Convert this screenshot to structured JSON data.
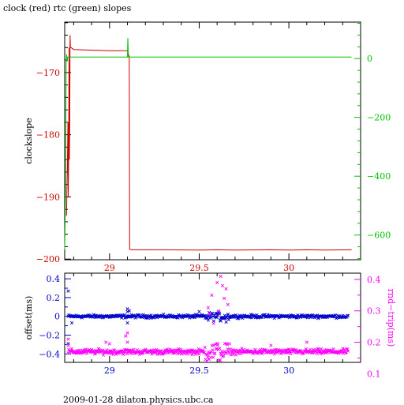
{
  "title": "clock (red) rtc (green) slopes",
  "footer": "2009-01-28 dilaton.physics.ubc.ca",
  "colors": {
    "red": "#cc0000",
    "green": "#00c000",
    "blue": "#0000cc",
    "magenta": "#ff00ff",
    "black": "#000000"
  },
  "chart_data": [
    {
      "type": "line",
      "title": "clock (red) rtc (green) slopes",
      "xlabel": "",
      "ylabel": "clockslope",
      "xlim": [
        28.75,
        30.4
      ],
      "ylim": [
        -200.1,
        -161.9
      ],
      "y2lim": [
        -684,
        124
      ],
      "x_ticks": [
        29,
        29.5,
        30
      ],
      "x_tick_labels": [
        "29",
        "29.5",
        "30"
      ],
      "y_ticks": [
        -170,
        -180,
        -190,
        -200
      ],
      "y_tick_labels": [
        "−170",
        "−180",
        "−190",
        "−200"
      ],
      "y2_ticks": [
        0,
        -200,
        -400,
        -600
      ],
      "y2_tick_labels": [
        "0",
        "−200",
        "−400",
        "−600"
      ],
      "series": [
        {
          "name": "clock",
          "color": "#cc0000",
          "axis": "left",
          "x": [
            28.76,
            28.765,
            28.768,
            28.77,
            28.772,
            28.774,
            28.776,
            28.778,
            28.78,
            28.782,
            28.785,
            28.8,
            28.9,
            29.0,
            29.05,
            29.1,
            29.105,
            29.11,
            29.112,
            29.12,
            29.2,
            29.3,
            29.5,
            29.6,
            29.7,
            29.9,
            30.0,
            30.1,
            30.2,
            30.35
          ],
          "y": [
            -193,
            -185,
            -178,
            -190,
            -183,
            -166,
            -184,
            -178,
            -164,
            -166,
            -166,
            -166.3,
            -166.4,
            -166.5,
            -166.5,
            -166.5,
            -167,
            -167.5,
            -198.4,
            -198.5,
            -198.5,
            -198.5,
            -198.55,
            -198.5,
            -198.55,
            -198.5,
            -198.55,
            -198.5,
            -198.55,
            -198.5
          ]
        },
        {
          "name": "rtc",
          "color": "#00c000",
          "axis": "right",
          "x": [
            28.75,
            28.755,
            28.758,
            28.76,
            28.763,
            28.766,
            28.77,
            28.8,
            29.0,
            29.1,
            29.102,
            29.105,
            29.11,
            29.12,
            29.5,
            30.0,
            30.35
          ],
          "y": [
            -650,
            -440,
            -20,
            15,
            -10,
            5,
            5,
            5,
            5,
            5,
            70,
            5,
            5,
            5,
            5,
            5,
            5
          ]
        }
      ]
    },
    {
      "type": "scatter",
      "title": "",
      "xlabel": "",
      "ylabel": "offset(ms)",
      "y2label": "rnd−trip(ms)",
      "xlim": [
        28.75,
        30.4
      ],
      "ylim": [
        -0.49,
        0.46
      ],
      "y2lim": [
        0.136,
        0.42
      ],
      "x_ticks": [
        29,
        29.5,
        30
      ],
      "x_tick_labels": [
        "29",
        "29.5",
        "30"
      ],
      "y_ticks": [
        0.4,
        0.2,
        0,
        -0.2,
        -0.4
      ],
      "y_tick_labels": [
        "0.4",
        "0.2",
        "0",
        "−0.2",
        "−0.4"
      ],
      "y2_ticks": [
        0.4,
        0.3,
        0.2,
        0.1
      ],
      "y2_tick_labels": [
        "0.4",
        "0.3",
        "0.2",
        "0.1"
      ],
      "series": [
        {
          "name": "offset",
          "color": "#0000cc",
          "axis": "left",
          "x_range": [
            28.77,
            30.33
          ],
          "baseline": 0.0,
          "spread": 0.025,
          "points": 430,
          "outliers": [
            [
              28.77,
              0.27
            ],
            [
              28.77,
              -0.29
            ],
            [
              29.1,
              0.08
            ],
            [
              29.1,
              0.05
            ],
            [
              29.11,
              0.06
            ],
            [
              29.1,
              -0.07
            ],
            [
              29.5,
              0.05
            ],
            [
              29.55,
              -0.04
            ],
            [
              29.6,
              0.03
            ],
            [
              29.62,
              -0.05
            ],
            [
              29.65,
              -0.06
            ],
            [
              28.79,
              -0.07
            ]
          ]
        },
        {
          "name": "rnd-trip",
          "color": "#ff00ff",
          "axis": "right",
          "x_range": [
            28.77,
            30.33
          ],
          "baseline": 0.17,
          "spread": 0.012,
          "points": 480,
          "outliers": [
            [
              28.77,
              0.21
            ],
            [
              28.77,
              0.19
            ],
            [
              29.09,
              0.22
            ],
            [
              29.1,
              0.2
            ],
            [
              29.1,
              0.23
            ],
            [
              29.0,
              0.195
            ],
            [
              28.98,
              0.2
            ],
            [
              29.55,
              0.31
            ],
            [
              29.57,
              0.35
            ],
            [
              29.6,
              0.39
            ],
            [
              29.62,
              0.41
            ],
            [
              29.63,
              0.38
            ],
            [
              29.65,
              0.37
            ],
            [
              29.66,
              0.32
            ],
            [
              29.64,
              0.34
            ],
            [
              29.61,
              0.3
            ],
            [
              29.58,
              0.26
            ],
            [
              29.56,
              0.29
            ],
            [
              30.1,
              0.2
            ],
            [
              29.9,
              0.19
            ]
          ]
        }
      ]
    }
  ]
}
